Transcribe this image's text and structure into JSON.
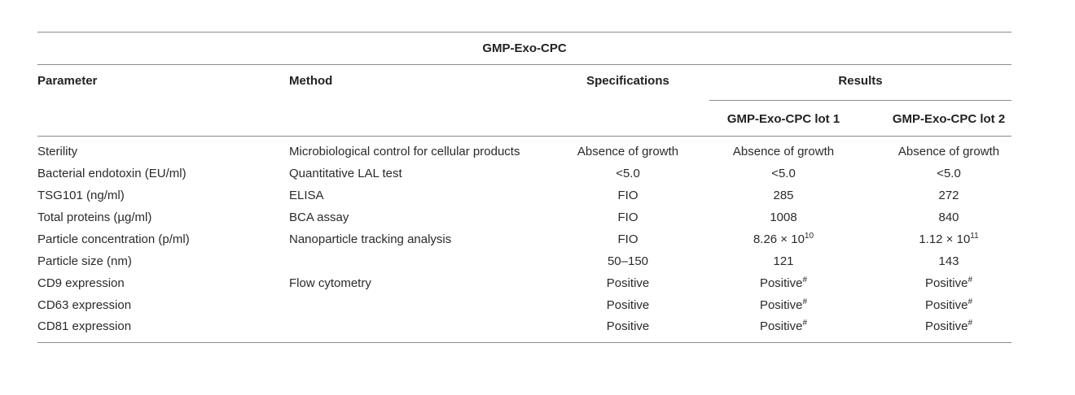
{
  "table": {
    "title": "GMP-Exo-CPC",
    "headers": {
      "parameter": "Parameter",
      "method": "Method",
      "specifications": "Specifications",
      "results": "Results",
      "lot1": "GMP-Exo-CPC lot 1",
      "lot2": "GMP-Exo-CPC lot 2"
    },
    "rows": [
      {
        "parameter": "Sterility",
        "method": "Microbiological control for cellular products",
        "specification": "Absence of growth",
        "lot1": {
          "base": "Absence of growth",
          "sup": ""
        },
        "lot2": {
          "base": "Absence of growth",
          "sup": ""
        }
      },
      {
        "parameter": "Bacterial endotoxin (EU/ml)",
        "method": "Quantitative LAL test",
        "specification": "<5.0",
        "lot1": {
          "base": "<5.0",
          "sup": ""
        },
        "lot2": {
          "base": "<5.0",
          "sup": ""
        }
      },
      {
        "parameter": "TSG101 (ng/ml)",
        "method": "ELISA",
        "specification": "FIO",
        "lot1": {
          "base": "285",
          "sup": ""
        },
        "lot2": {
          "base": "272",
          "sup": ""
        }
      },
      {
        "parameter": "Total proteins (µg/ml)",
        "method": "BCA assay",
        "specification": "FIO",
        "lot1": {
          "base": "1008",
          "sup": ""
        },
        "lot2": {
          "base": "840",
          "sup": ""
        }
      },
      {
        "parameter": "Particle concentration (p/ml)",
        "method": "Nanoparticle tracking analysis",
        "specification": "FIO",
        "lot1": {
          "base": "8.26 × 10",
          "sup": "10"
        },
        "lot2": {
          "base": "1.12 × 10",
          "sup": "11"
        }
      },
      {
        "parameter": "Particle size (nm)",
        "method": "",
        "specification": "50–150",
        "lot1": {
          "base": "121",
          "sup": ""
        },
        "lot2": {
          "base": "143",
          "sup": ""
        }
      },
      {
        "parameter": "CD9 expression",
        "method": "Flow cytometry",
        "specification": "Positive",
        "lot1": {
          "base": "Positive",
          "sup": "#"
        },
        "lot2": {
          "base": "Positive",
          "sup": "#"
        }
      },
      {
        "parameter": "CD63 expression",
        "method": "",
        "specification": "Positive",
        "lot1": {
          "base": "Positive",
          "sup": "#"
        },
        "lot2": {
          "base": "Positive",
          "sup": "#"
        }
      },
      {
        "parameter": "CD81 expression",
        "method": "",
        "specification": "Positive",
        "lot1": {
          "base": "Positive",
          "sup": "#"
        },
        "lot2": {
          "base": "Positive",
          "sup": "#"
        }
      }
    ]
  }
}
